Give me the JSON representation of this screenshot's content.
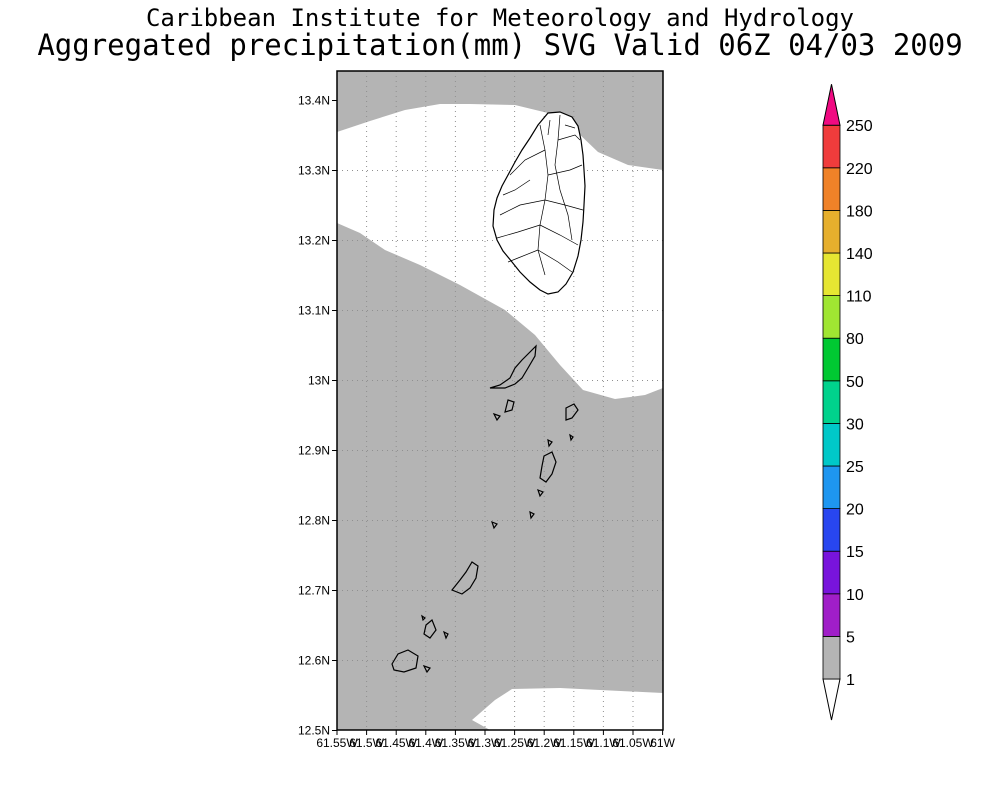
{
  "title": {
    "line1": "Caribbean Institute for Meteorology and Hydrology",
    "line2": "Aggregated precipitation(mm) SVG Valid 06Z 04/03 2009"
  },
  "map": {
    "lat_labels": [
      "13.4N",
      "13.3N",
      "13.2N",
      "13.1N",
      "13N",
      "12.9N",
      "12.8N",
      "12.7N",
      "12.6N",
      "12.5N"
    ],
    "lon_labels": [
      "61.55W",
      "61.5W",
      "61.45W",
      "61.4W",
      "61.35W",
      "61.3W",
      "61.25W",
      "61.2W",
      "61.15W",
      "61.1W",
      "61.05W",
      "61W"
    ],
    "shaded_color": "#b4b4b4",
    "shaded_class": "1-5 mm"
  },
  "colorbar": {
    "labels": [
      "1",
      "5",
      "10",
      "15",
      "20",
      "25",
      "30",
      "50",
      "80",
      "110",
      "140",
      "180",
      "220",
      "250"
    ],
    "colors": [
      "#b4b4b4",
      "#a01ec8",
      "#7814dc",
      "#2846f0",
      "#1e96f0",
      "#00c8c8",
      "#00d28c",
      "#00c832",
      "#a0e632",
      "#e6e632",
      "#e6af2d",
      "#f08228",
      "#f03c3c",
      "#f00a82"
    ]
  }
}
